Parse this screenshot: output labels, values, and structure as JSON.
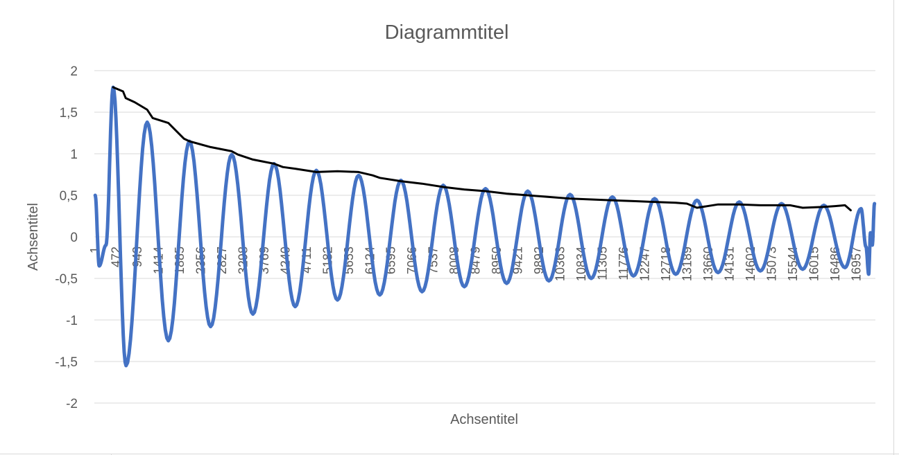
{
  "chart_data": {
    "type": "line",
    "title": "Diagrammtitel",
    "xlabel": "Achsentitel",
    "ylabel": "Achsentitel",
    "ylim": [
      -2,
      2
    ],
    "y_ticks": [
      "2",
      "1,5",
      "1",
      "0,5",
      "0",
      "-0,5",
      "-1",
      "-1,5",
      "-2"
    ],
    "y_tick_values": [
      2,
      1.5,
      1,
      0.5,
      0,
      -0.5,
      -1,
      -1.5,
      -2
    ],
    "x_range": [
      1,
      17400
    ],
    "x_tick_labels": [
      "1",
      "472",
      "943",
      "1414",
      "1885",
      "2356",
      "2827",
      "3298",
      "3769",
      "4240",
      "4711",
      "5182",
      "5653",
      "6124",
      "6595",
      "7066",
      "7537",
      "8008",
      "8479",
      "8950",
      "9421",
      "9892",
      "10363",
      "10834",
      "11305",
      "11776",
      "12247",
      "12718",
      "13189",
      "13660",
      "14131",
      "14602",
      "15073",
      "15544",
      "16015",
      "16486",
      "16957"
    ],
    "x_tick_values": [
      1,
      472,
      943,
      1414,
      1885,
      2356,
      2827,
      3298,
      3769,
      4240,
      4711,
      5182,
      5653,
      6124,
      6595,
      7066,
      7537,
      8008,
      8479,
      8950,
      9421,
      9892,
      10363,
      10834,
      11305,
      11776,
      12247,
      12718,
      13189,
      13660,
      14131,
      14602,
      15073,
      15544,
      16015,
      16486,
      16957
    ],
    "grid": true,
    "legend": "none",
    "series": [
      {
        "color": "#4472c4",
        "style": "damped-oscillation",
        "x": [
          20,
          110,
          260,
          420,
          707,
          1178,
          1649,
          2120,
          2591,
          3062,
          3533,
          4004,
          4475,
          4946,
          5417,
          5888,
          6359,
          6830,
          7301,
          7772,
          8243,
          8714,
          9185,
          9656,
          10127,
          10598,
          11069,
          11540,
          12011,
          12482,
          12953,
          13424,
          13895,
          14366,
          14837,
          15308,
          15779,
          16250,
          16721,
          17080,
          17190,
          17250,
          17290,
          17330,
          17380
        ],
        "y": [
          0.5,
          -0.35,
          -0.1,
          1.8,
          -1.55,
          1.38,
          -1.25,
          1.15,
          -1.08,
          0.99,
          -0.93,
          0.88,
          -0.84,
          0.8,
          -0.76,
          0.74,
          -0.7,
          0.68,
          -0.66,
          0.62,
          -0.6,
          0.58,
          -0.56,
          0.55,
          -0.53,
          0.51,
          -0.5,
          0.48,
          -0.47,
          0.46,
          -0.45,
          0.44,
          -0.43,
          0.42,
          -0.41,
          0.4,
          -0.39,
          0.38,
          -0.37,
          0.34,
          -0.12,
          -0.45,
          0.05,
          -0.1,
          0.4
        ]
      },
      {
        "color": "#000000",
        "style": "envelope",
        "x": [
          420,
          640,
          700,
          900,
          1178,
          1300,
          1649,
          2000,
          2120,
          2591,
          3062,
          3200,
          3533,
          4004,
          4200,
          4475,
          4946,
          5417,
          5888,
          6200,
          6359,
          6830,
          7301,
          7772,
          8243,
          8714,
          9185,
          9656,
          10127,
          10598,
          11069,
          11540,
          12011,
          12482,
          12953,
          13200,
          13424,
          13895,
          14366,
          14837,
          15308,
          15500,
          15779,
          16250,
          16500,
          16721,
          16850
        ],
        "y": [
          1.8,
          1.75,
          1.67,
          1.62,
          1.53,
          1.43,
          1.37,
          1.18,
          1.15,
          1.08,
          1.03,
          0.99,
          0.93,
          0.88,
          0.84,
          0.82,
          0.78,
          0.79,
          0.78,
          0.74,
          0.71,
          0.67,
          0.64,
          0.6,
          0.57,
          0.55,
          0.52,
          0.5,
          0.48,
          0.46,
          0.45,
          0.44,
          0.43,
          0.42,
          0.41,
          0.4,
          0.35,
          0.39,
          0.39,
          0.38,
          0.38,
          0.38,
          0.35,
          0.36,
          0.37,
          0.38,
          0.32
        ]
      }
    ]
  }
}
